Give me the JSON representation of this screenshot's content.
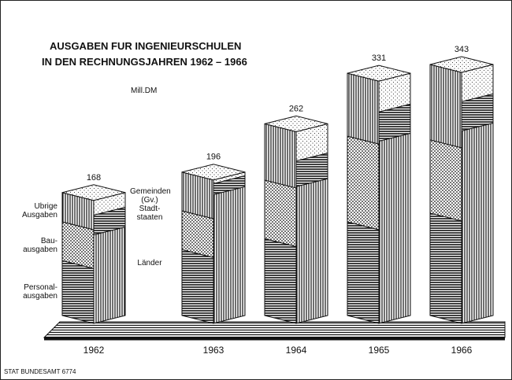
{
  "chart_data": {
    "type": "bar3d",
    "title": [
      "AUSGABEN FUR INGENIEURSCHULEN",
      "IN DEN RECHNUNGSJAHREN 1962 – 1966"
    ],
    "unit": "Mill.DM",
    "source": "STAT BUNDESAMT 6774",
    "categories": [
      "1962",
      "1963",
      "1964",
      "1965",
      "1966"
    ],
    "totals": [
      168,
      196,
      262,
      331,
      343
    ],
    "front_series": [
      {
        "name": "Personal-ausgaben",
        "pattern": "hlines",
        "values": [
          75,
          90,
          105,
          128,
          140
        ]
      },
      {
        "name": "Bau-ausgaben",
        "pattern": "dots",
        "values": [
          53,
          53,
          80,
          117,
          100
        ]
      },
      {
        "name": "Ubrige Ausgaben",
        "pattern": "vlines",
        "values": [
          40,
          53,
          77,
          86,
          103
        ]
      }
    ],
    "side_series": [
      {
        "name": "Länder",
        "pattern": "vlines",
        "values": [
          121,
          176,
          187,
          249,
          263
        ]
      },
      {
        "name": "Stadt-staaten",
        "pattern": "hlines",
        "values": [
          27,
          15,
          35,
          40,
          40
        ]
      },
      {
        "name": "Gemeinden (Gv.)",
        "pattern": "lightdots",
        "values": [
          20,
          5,
          40,
          42,
          40
        ]
      }
    ]
  }
}
